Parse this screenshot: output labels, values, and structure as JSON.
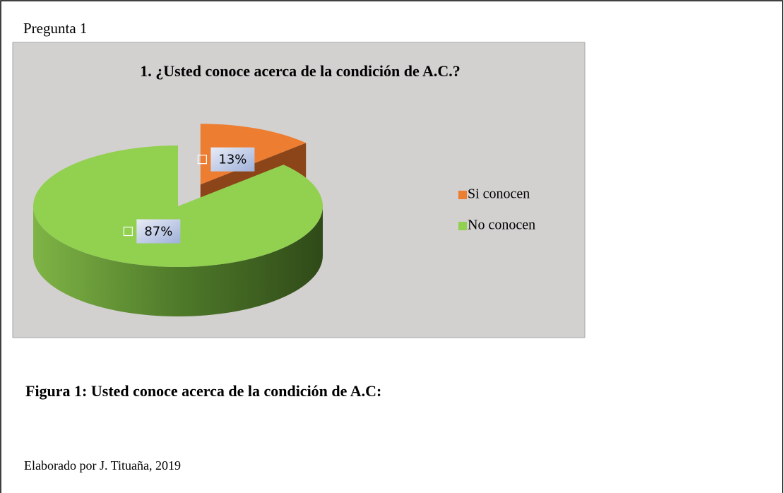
{
  "header": {
    "title": "Pregunta 1"
  },
  "chart_data": {
    "type": "pie",
    "title": "1. ¿Usted conoce acerca de la condición de A.C.?",
    "categories": [
      "Si conocen",
      "No conocen"
    ],
    "values": [
      13,
      87
    ],
    "value_labels": [
      "13%",
      "87%"
    ],
    "colors": [
      "#ed7d31",
      "#92d050"
    ],
    "legend": "right",
    "exploded": [
      0
    ]
  },
  "caption": "Figura 1: Usted conoce acerca de la condición de A.C:",
  "source": "Elaborado por J. Tituaña, 2019"
}
